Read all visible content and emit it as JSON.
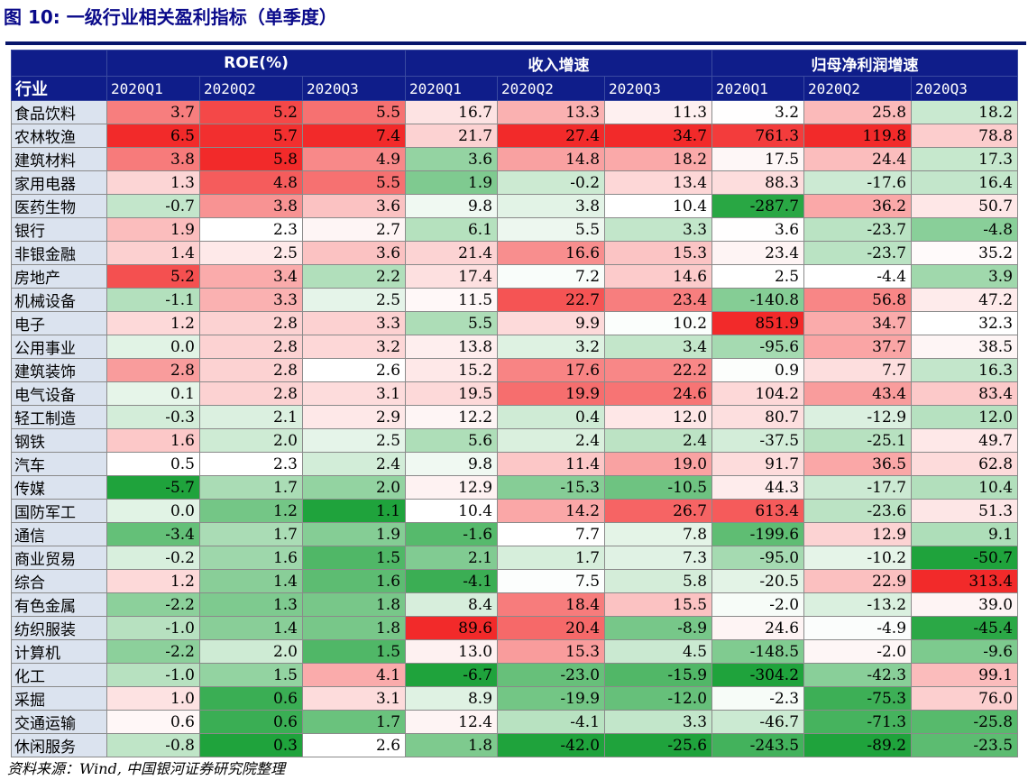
{
  "title": "图 10:  一级行业相关盈利指标（单季度）",
  "header": {
    "groups": [
      "ROE(%)",
      "收入增速",
      "归母净利润增速"
    ],
    "category_label": "行业",
    "quarters": [
      "2020Q1",
      "2020Q2",
      "2020Q3",
      "2020Q1",
      "2020Q2",
      "2020Q3",
      "2020Q1",
      "2020Q2",
      "2020Q3"
    ]
  },
  "rows": [
    {
      "name": "食品饮料",
      "values": [
        "3.7",
        "5.2",
        "5.5",
        "16.7",
        "13.3",
        "11.3",
        "3.2",
        "25.8",
        "18.2"
      ]
    },
    {
      "name": "农林牧渔",
      "values": [
        "6.5",
        "5.7",
        "7.4",
        "21.7",
        "27.4",
        "34.7",
        "761.3",
        "119.8",
        "78.8"
      ]
    },
    {
      "name": "建筑材料",
      "values": [
        "3.8",
        "5.8",
        "4.9",
        "3.6",
        "14.8",
        "18.2",
        "17.5",
        "24.4",
        "17.3"
      ]
    },
    {
      "name": "家用电器",
      "values": [
        "1.3",
        "4.8",
        "5.5",
        "1.9",
        "-0.2",
        "13.4",
        "88.3",
        "-17.6",
        "16.4"
      ]
    },
    {
      "name": "医药生物",
      "values": [
        "-0.7",
        "3.8",
        "3.6",
        "9.8",
        "3.8",
        "10.4",
        "-287.7",
        "36.2",
        "50.7"
      ]
    },
    {
      "name": "银行",
      "values": [
        "1.9",
        "2.3",
        "2.7",
        "6.1",
        "5.5",
        "3.3",
        "3.6",
        "-23.7",
        "-4.8"
      ]
    },
    {
      "name": "非银金融",
      "values": [
        "1.4",
        "2.5",
        "3.6",
        "21.4",
        "16.6",
        "15.3",
        "23.4",
        "-23.7",
        "35.2"
      ]
    },
    {
      "name": "房地产",
      "values": [
        "5.2",
        "3.4",
        "2.2",
        "17.4",
        "7.2",
        "14.6",
        "2.5",
        "-4.4",
        "3.9"
      ]
    },
    {
      "name": "机械设备",
      "values": [
        "-1.1",
        "3.3",
        "2.5",
        "11.5",
        "22.7",
        "23.4",
        "-140.8",
        "56.8",
        "47.2"
      ]
    },
    {
      "name": "电子",
      "values": [
        "1.2",
        "2.8",
        "3.3",
        "5.5",
        "9.9",
        "10.2",
        "851.9",
        "34.7",
        "32.3"
      ]
    },
    {
      "name": "公用事业",
      "values": [
        "0.0",
        "2.8",
        "3.2",
        "13.8",
        "3.2",
        "3.4",
        "-95.6",
        "37.7",
        "38.5"
      ]
    },
    {
      "name": "建筑装饰",
      "values": [
        "2.8",
        "2.8",
        "2.6",
        "15.2",
        "17.6",
        "22.2",
        "0.9",
        "7.7",
        "16.3"
      ]
    },
    {
      "name": "电气设备",
      "values": [
        "0.1",
        "2.8",
        "3.1",
        "19.5",
        "19.9",
        "24.6",
        "104.2",
        "43.4",
        "83.4"
      ]
    },
    {
      "name": "轻工制造",
      "values": [
        "-0.3",
        "2.1",
        "2.9",
        "12.2",
        "0.4",
        "12.0",
        "80.7",
        "-12.9",
        "12.0"
      ]
    },
    {
      "name": "钢铁",
      "values": [
        "1.6",
        "2.0",
        "2.5",
        "5.6",
        "2.4",
        "2.4",
        "-37.5",
        "-25.1",
        "49.7"
      ]
    },
    {
      "name": "汽车",
      "values": [
        "0.5",
        "2.3",
        "2.4",
        "9.8",
        "11.4",
        "19.0",
        "91.7",
        "36.5",
        "62.8"
      ]
    },
    {
      "name": "传媒",
      "values": [
        "-5.7",
        "1.7",
        "2.0",
        "12.9",
        "-15.3",
        "-10.5",
        "44.3",
        "-17.7",
        "10.4"
      ]
    },
    {
      "name": "国防军工",
      "values": [
        "0.0",
        "1.2",
        "1.1",
        "10.4",
        "14.2",
        "26.7",
        "613.4",
        "-23.6",
        "51.3"
      ]
    },
    {
      "name": "通信",
      "values": [
        "-3.4",
        "1.7",
        "1.9",
        "-1.6",
        "7.7",
        "7.8",
        "-199.6",
        "12.9",
        "9.1"
      ]
    },
    {
      "name": "商业贸易",
      "values": [
        "-0.2",
        "1.6",
        "1.5",
        "2.1",
        "1.7",
        "7.3",
        "-95.0",
        "-10.2",
        "-50.7"
      ]
    },
    {
      "name": "综合",
      "values": [
        "1.2",
        "1.4",
        "1.6",
        "-4.1",
        "7.5",
        "5.8",
        "-20.5",
        "22.9",
        "313.4"
      ]
    },
    {
      "name": "有色金属",
      "values": [
        "-2.2",
        "1.3",
        "1.8",
        "8.4",
        "18.4",
        "15.5",
        "-2.0",
        "-13.2",
        "39.0"
      ]
    },
    {
      "name": "纺织服装",
      "values": [
        "-1.0",
        "1.4",
        "1.8",
        "89.6",
        "20.4",
        "-8.9",
        "24.6",
        "-4.9",
        "-45.4"
      ]
    },
    {
      "name": "计算机",
      "values": [
        "-2.2",
        "2.0",
        "1.5",
        "13.0",
        "15.3",
        "4.5",
        "-148.5",
        "-2.0",
        "-9.6"
      ]
    },
    {
      "name": "化工",
      "values": [
        "-1.0",
        "1.5",
        "4.1",
        "-6.7",
        "-23.0",
        "-15.9",
        "-304.2",
        "-42.3",
        "99.1"
      ]
    },
    {
      "name": "采掘",
      "values": [
        "1.0",
        "0.6",
        "3.1",
        "8.9",
        "-19.9",
        "-12.0",
        "-2.3",
        "-75.3",
        "76.0"
      ]
    },
    {
      "name": "交通运输",
      "values": [
        "0.6",
        "0.6",
        "1.7",
        "12.4",
        "-4.1",
        "3.3",
        "-46.7",
        "-71.3",
        "-25.8"
      ]
    },
    {
      "name": "休闲服务",
      "values": [
        "-0.8",
        "0.3",
        "2.6",
        "1.8",
        "-42.0",
        "-25.6",
        "-243.5",
        "-89.2",
        "-23.5"
      ]
    }
  ],
  "colors": {
    "header_bg": "#0f1d8a",
    "category_bg": "#dbe3ef",
    "positive_max": "#f22a2a",
    "negative_max": "#1fa33c",
    "neutral": "#ffffff"
  },
  "source": "资料来源：Wind, 中国银河证券研究院整理"
}
